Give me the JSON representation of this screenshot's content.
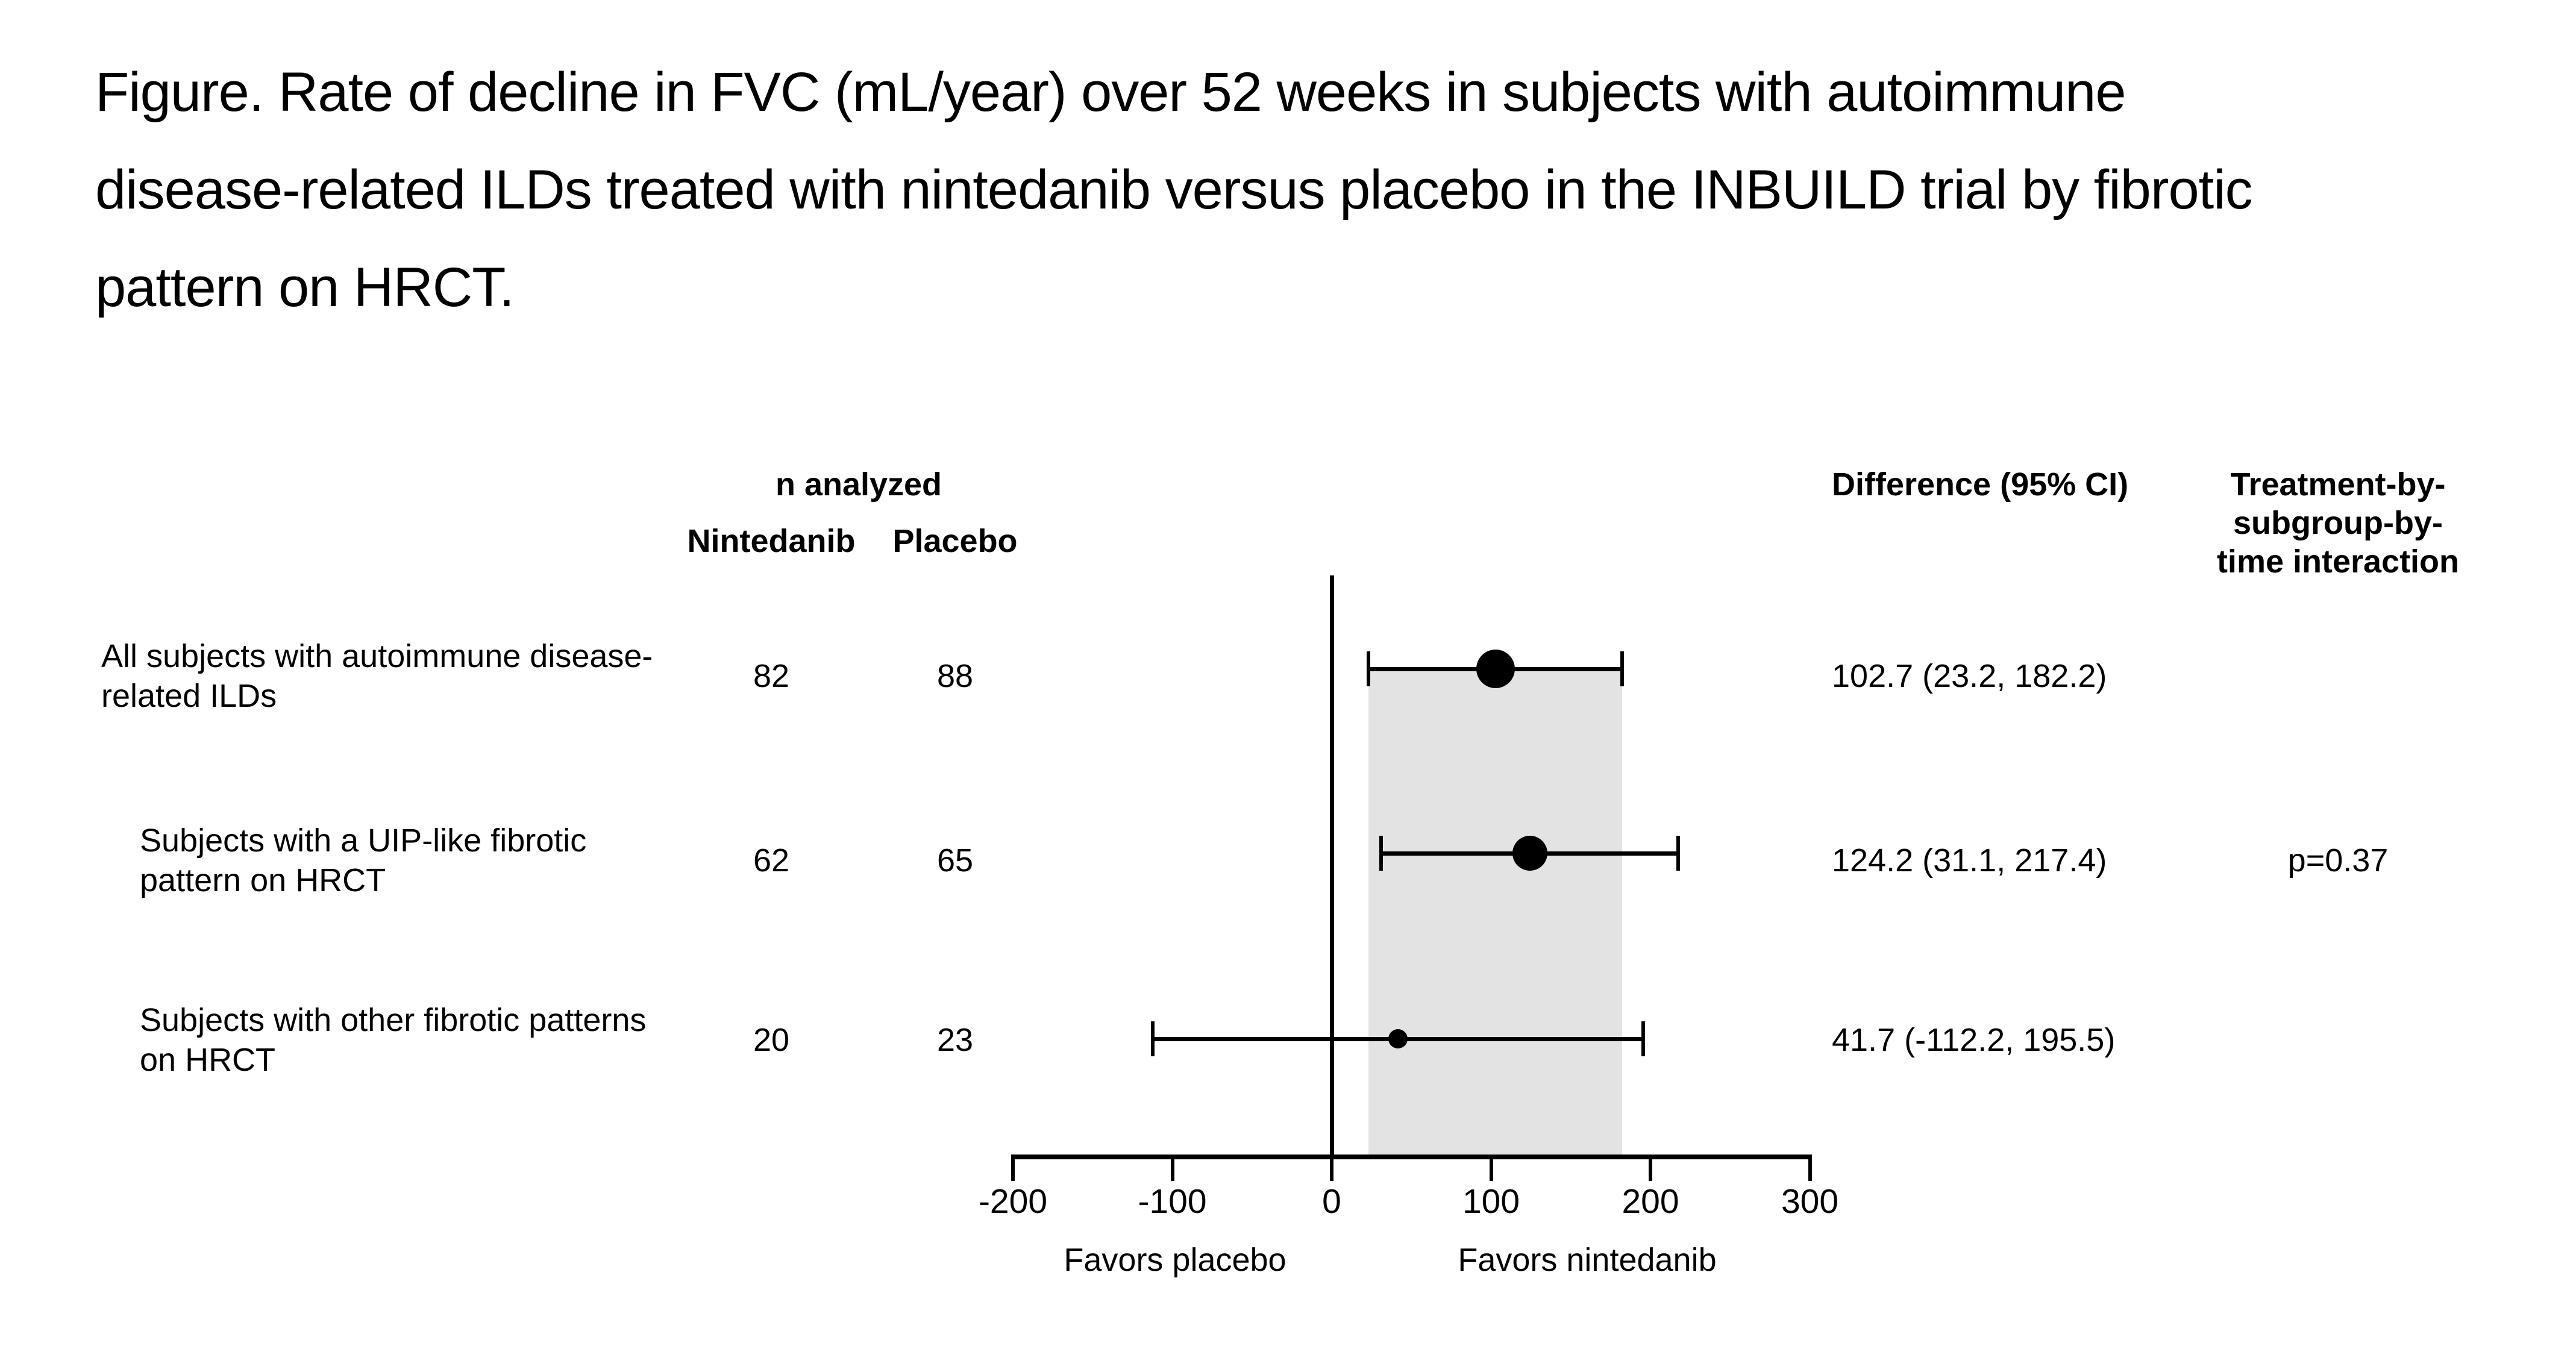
{
  "figure": {
    "title_lines": [
      "Figure. Rate of decline in FVC (mL/year) over 52 weeks in subjects with autoimmune",
      "disease-related ILDs treated with nintedanib versus placebo in the INBUILD trial by fibrotic",
      "pattern on HRCT."
    ]
  },
  "table": {
    "n_analyzed_header": "n analyzed",
    "nintedanib_header": "Nintedanib",
    "placebo_header": "Placebo",
    "difference_header": "Difference (95% CI)",
    "interaction_header_lines": [
      "Treatment-by-",
      "subgroup-by-",
      "time interaction"
    ]
  },
  "chart_data": {
    "type": "forest",
    "xlabel_ticks": [
      -200,
      -100,
      0,
      100,
      200,
      300
    ],
    "xlim": [
      -200,
      300
    ],
    "zero_reference_line": 0,
    "shaded_band": {
      "from": 23.2,
      "to": 182.2
    },
    "annotations": {
      "favors_left": "Favors placebo",
      "favors_right": "Favors nintedanib"
    },
    "rows": [
      {
        "label_lines": [
          "All subjects with autoimmune disease-",
          "related ILDs"
        ],
        "n_nintedanib": "82",
        "n_placebo": "88",
        "estimate": 102.7,
        "ci_lower": 23.2,
        "ci_upper": 182.2,
        "difference_text": "102.7 (23.2, 182.2)",
        "p_value": ""
      },
      {
        "label_lines": [
          "Subjects with a UIP-like fibrotic",
          "pattern on HRCT"
        ],
        "n_nintedanib": "62",
        "n_placebo": "65",
        "estimate": 124.2,
        "ci_lower": 31.1,
        "ci_upper": 217.4,
        "difference_text": "124.2 (31.1, 217.4)",
        "p_value": "p=0.37"
      },
      {
        "label_lines": [
          "Subjects with other fibrotic patterns",
          "on HRCT"
        ],
        "n_nintedanib": "20",
        "n_placebo": "23",
        "estimate": 41.7,
        "ci_lower": -112.2,
        "ci_upper": 195.5,
        "difference_text": "41.7 (-112.2, 195.5)",
        "p_value": ""
      }
    ]
  },
  "colors": {
    "band": "#e3e3e3",
    "ink": "#000000",
    "background": "#ffffff"
  }
}
